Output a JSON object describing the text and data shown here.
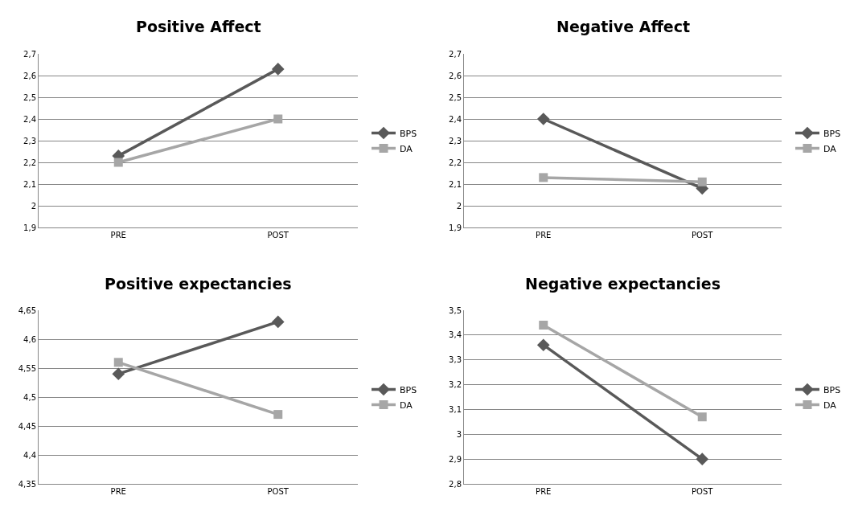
{
  "chart_data": [
    {
      "type": "line",
      "title": "Positive Affect",
      "categories": [
        "PRE",
        "POST"
      ],
      "ylim": [
        1.9,
        2.7
      ],
      "yticks": [
        {
          "value": 1.9,
          "label": "1,9"
        },
        2,
        {
          "value": 2.1,
          "label": "2,1"
        },
        {
          "value": 2.2,
          "label": "2,2"
        },
        {
          "value": 2.3,
          "label": "2,3"
        },
        {
          "value": 2.4,
          "label": "2,4"
        },
        {
          "value": 2.5,
          "label": "2,5"
        },
        {
          "value": 2.6,
          "label": "2,6"
        },
        {
          "value": 2.7,
          "label": "2,7"
        }
      ],
      "grid": "y",
      "legend": "right",
      "series": [
        {
          "name": "BPS",
          "color": "#595959",
          "marker": "diamond",
          "values": [
            2.23,
            2.63
          ]
        },
        {
          "name": "DA",
          "color": "#a6a6a6",
          "marker": "square",
          "values": [
            2.2,
            2.4
          ]
        }
      ]
    },
    {
      "type": "line",
      "title": "Negative Affect",
      "categories": [
        "PRE",
        "POST"
      ],
      "ylim": [
        1.9,
        2.7
      ],
      "yticks": [
        {
          "value": 1.9,
          "label": "1,9"
        },
        2,
        {
          "value": 2.1,
          "label": "2,1"
        },
        {
          "value": 2.2,
          "label": "2,2"
        },
        {
          "value": 2.3,
          "label": "2,3"
        },
        {
          "value": 2.4,
          "label": "2,4"
        },
        {
          "value": 2.5,
          "label": "2,5"
        },
        {
          "value": 2.6,
          "label": "2,6"
        },
        {
          "value": 2.7,
          "label": "2,7"
        }
      ],
      "grid": "y",
      "legend": "right",
      "series": [
        {
          "name": "BPS",
          "color": "#595959",
          "marker": "diamond",
          "values": [
            2.4,
            2.08
          ]
        },
        {
          "name": "DA",
          "color": "#a6a6a6",
          "marker": "square",
          "values": [
            2.13,
            2.11
          ]
        }
      ]
    },
    {
      "type": "line",
      "title": "Positive expectancies",
      "categories": [
        "PRE",
        "POST"
      ],
      "ylim": [
        4.35,
        4.65
      ],
      "yticks": [
        {
          "value": 4.35,
          "label": "4,35"
        },
        {
          "value": 4.4,
          "label": "4,4"
        },
        {
          "value": 4.45,
          "label": "4,45"
        },
        {
          "value": 4.5,
          "label": "4,5"
        },
        {
          "value": 4.55,
          "label": "4,55"
        },
        {
          "value": 4.6,
          "label": "4,6"
        },
        {
          "value": 4.65,
          "label": "4,65"
        }
      ],
      "grid": "y",
      "legend": "right",
      "series": [
        {
          "name": "BPS",
          "color": "#595959",
          "marker": "diamond",
          "values": [
            4.54,
            4.63
          ]
        },
        {
          "name": "DA",
          "color": "#a6a6a6",
          "marker": "square",
          "values": [
            4.56,
            4.47
          ]
        }
      ]
    },
    {
      "type": "line",
      "title": "Negative expectancies",
      "categories": [
        "PRE",
        "POST"
      ],
      "ylim": [
        2.8,
        3.5
      ],
      "yticks": [
        {
          "value": 2.8,
          "label": "2,8"
        },
        {
          "value": 2.9,
          "label": "2,9"
        },
        3,
        {
          "value": 3.1,
          "label": "3,1"
        },
        {
          "value": 3.2,
          "label": "3,2"
        },
        {
          "value": 3.3,
          "label": "3,3"
        },
        {
          "value": 3.4,
          "label": "3,4"
        },
        {
          "value": 3.5,
          "label": "3,5"
        }
      ],
      "grid": "y",
      "legend": "right",
      "series": [
        {
          "name": "BPS",
          "color": "#595959",
          "marker": "diamond",
          "values": [
            3.36,
            2.9
          ]
        },
        {
          "name": "DA",
          "color": "#a6a6a6",
          "marker": "square",
          "values": [
            3.44,
            3.07
          ]
        }
      ]
    }
  ]
}
